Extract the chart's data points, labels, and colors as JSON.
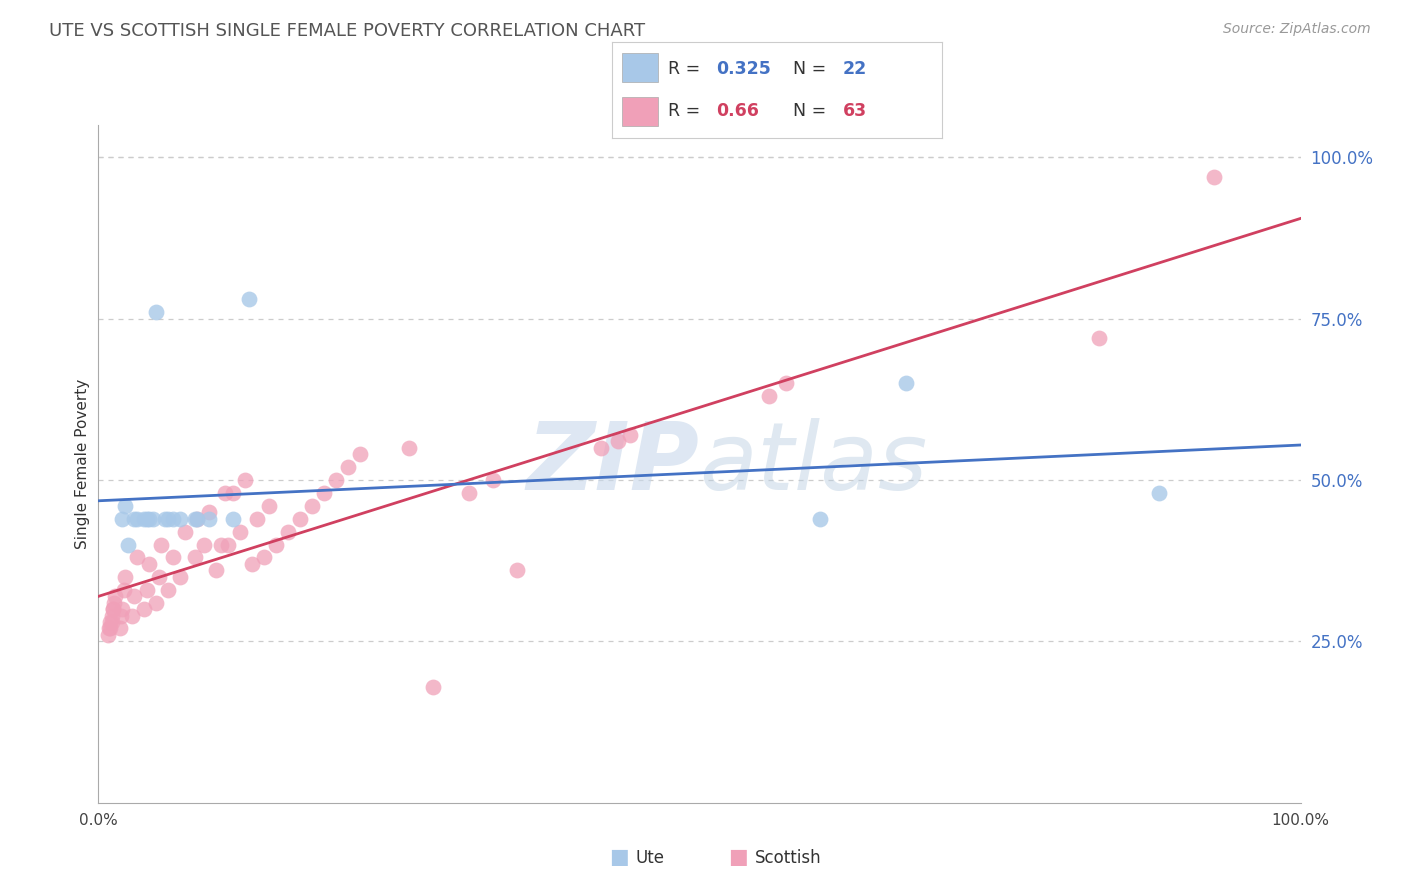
{
  "title": "UTE VS SCOTTISH SINGLE FEMALE POVERTY CORRELATION CHART",
  "source_text": "Source: ZipAtlas.com",
  "ylabel": "Single Female Poverty",
  "ute_r": 0.325,
  "ute_n": 22,
  "scottish_r": 0.66,
  "scottish_n": 63,
  "ute_color": "#a8c8e8",
  "scottish_color": "#f0a0b8",
  "ute_line_color": "#4472c4",
  "scottish_line_color": "#d04060",
  "background_color": "#ffffff",
  "watermark_color": "#c8d8eb",
  "ute_x": [
    0.02,
    0.022,
    0.025,
    0.03,
    0.032,
    0.038,
    0.04,
    0.042,
    0.045,
    0.048,
    0.055,
    0.058,
    0.062,
    0.068,
    0.08,
    0.082,
    0.092,
    0.112,
    0.125,
    0.6,
    0.672,
    0.882
  ],
  "ute_y": [
    0.44,
    0.46,
    0.4,
    0.44,
    0.44,
    0.44,
    0.44,
    0.44,
    0.44,
    0.76,
    0.44,
    0.44,
    0.44,
    0.44,
    0.44,
    0.44,
    0.44,
    0.44,
    0.78,
    0.44,
    0.65,
    0.48
  ],
  "scottish_x": [
    0.008,
    0.009,
    0.01,
    0.01,
    0.011,
    0.011,
    0.012,
    0.012,
    0.013,
    0.014,
    0.018,
    0.019,
    0.02,
    0.021,
    0.022,
    0.028,
    0.03,
    0.032,
    0.038,
    0.04,
    0.042,
    0.048,
    0.05,
    0.052,
    0.058,
    0.062,
    0.068,
    0.072,
    0.08,
    0.082,
    0.088,
    0.092,
    0.098,
    0.102,
    0.105,
    0.108,
    0.112,
    0.118,
    0.122,
    0.128,
    0.132,
    0.138,
    0.142,
    0.148,
    0.158,
    0.168,
    0.178,
    0.188,
    0.198,
    0.208,
    0.218,
    0.258,
    0.278,
    0.308,
    0.328,
    0.348,
    0.418,
    0.432,
    0.442,
    0.558,
    0.572,
    0.832,
    0.928
  ],
  "scottish_y": [
    0.26,
    0.27,
    0.27,
    0.28,
    0.28,
    0.29,
    0.3,
    0.3,
    0.31,
    0.32,
    0.27,
    0.29,
    0.3,
    0.33,
    0.35,
    0.29,
    0.32,
    0.38,
    0.3,
    0.33,
    0.37,
    0.31,
    0.35,
    0.4,
    0.33,
    0.38,
    0.35,
    0.42,
    0.38,
    0.44,
    0.4,
    0.45,
    0.36,
    0.4,
    0.48,
    0.4,
    0.48,
    0.42,
    0.5,
    0.37,
    0.44,
    0.38,
    0.46,
    0.4,
    0.42,
    0.44,
    0.46,
    0.48,
    0.5,
    0.52,
    0.54,
    0.55,
    0.18,
    0.48,
    0.5,
    0.36,
    0.55,
    0.56,
    0.57,
    0.63,
    0.65,
    0.72,
    0.97
  ],
  "ytick_vals": [
    0.25,
    0.5,
    0.75,
    1.0
  ],
  "ytick_labels": [
    "25.0%",
    "50.0%",
    "75.0%",
    "100.0%"
  ]
}
